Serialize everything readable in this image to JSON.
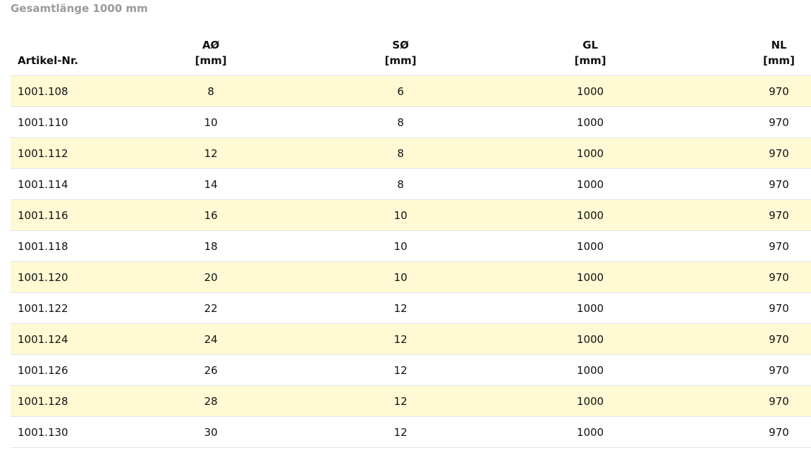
{
  "title": "Gesamtlänge 1000 mm",
  "table": {
    "headers": [
      {
        "line1": "Artikel-Nr.",
        "line2": ""
      },
      {
        "line1": "AØ",
        "line2": "[mm]"
      },
      {
        "line1": "SØ",
        "line2": "[mm]"
      },
      {
        "line1": "GL",
        "line2": "[mm]"
      },
      {
        "line1": "NL",
        "line2": "[mm]"
      }
    ],
    "rows": [
      [
        "1001.108",
        "8",
        "6",
        "1000",
        "970"
      ],
      [
        "1001.110",
        "10",
        "8",
        "1000",
        "970"
      ],
      [
        "1001.112",
        "12",
        "8",
        "1000",
        "970"
      ],
      [
        "1001.114",
        "14",
        "8",
        "1000",
        "970"
      ],
      [
        "1001.116",
        "16",
        "10",
        "1000",
        "970"
      ],
      [
        "1001.118",
        "18",
        "10",
        "1000",
        "970"
      ],
      [
        "1001.120",
        "20",
        "10",
        "1000",
        "970"
      ],
      [
        "1001.122",
        "22",
        "12",
        "1000",
        "970"
      ],
      [
        "1001.124",
        "24",
        "12",
        "1000",
        "970"
      ],
      [
        "1001.126",
        "26",
        "12",
        "1000",
        "970"
      ],
      [
        "1001.128",
        "28",
        "12",
        "1000",
        "970"
      ],
      [
        "1001.130",
        "30",
        "12",
        "1000",
        "970"
      ]
    ],
    "stripe_color": "#fff9d4"
  }
}
